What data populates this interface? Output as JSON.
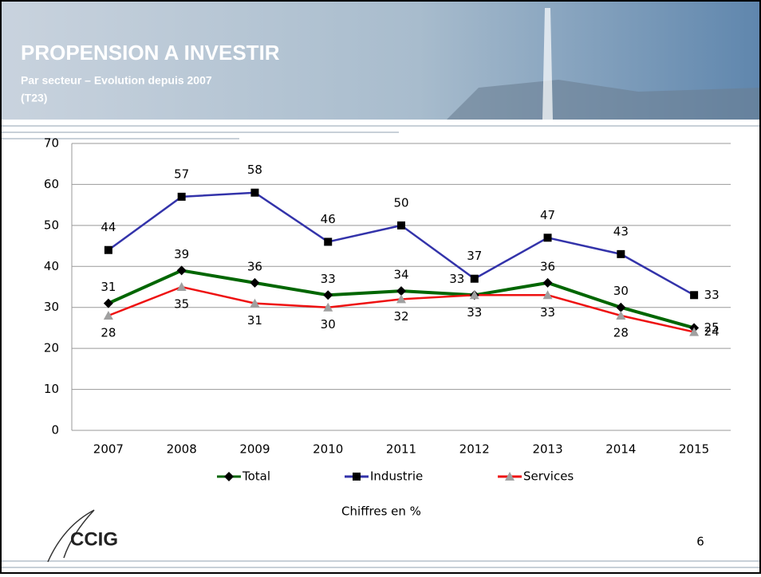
{
  "header": {
    "title": "PROPENSION A INVESTIR",
    "subtitle": "Par secteur – Evolution depuis 2007",
    "code": "(T23)"
  },
  "chart_data": {
    "type": "line",
    "categories": [
      "2007",
      "2008",
      "2009",
      "2010",
      "2011",
      "2012",
      "2013",
      "2014",
      "2015"
    ],
    "series": [
      {
        "name": "Total",
        "color": "#006600",
        "marker": "diamond",
        "marker_color": "#000000",
        "values": [
          31,
          39,
          36,
          33,
          34,
          33,
          36,
          30,
          25
        ]
      },
      {
        "name": "Industrie",
        "color": "#3333aa",
        "marker": "square",
        "marker_color": "#000000",
        "values": [
          44,
          57,
          58,
          46,
          50,
          37,
          47,
          43,
          33
        ]
      },
      {
        "name": "Services",
        "color": "#ee1111",
        "marker": "triangle",
        "marker_color": "#a0a0a0",
        "values": [
          28,
          35,
          31,
          30,
          32,
          33,
          33,
          28,
          24
        ]
      }
    ],
    "ylim": [
      0,
      70
    ],
    "yticks": [
      0,
      10,
      20,
      30,
      40,
      50,
      60,
      70
    ],
    "grid": true,
    "legend": "bottom",
    "note": "Chiffres en %"
  },
  "footer": {
    "logo": "CCIG",
    "page": "6"
  }
}
